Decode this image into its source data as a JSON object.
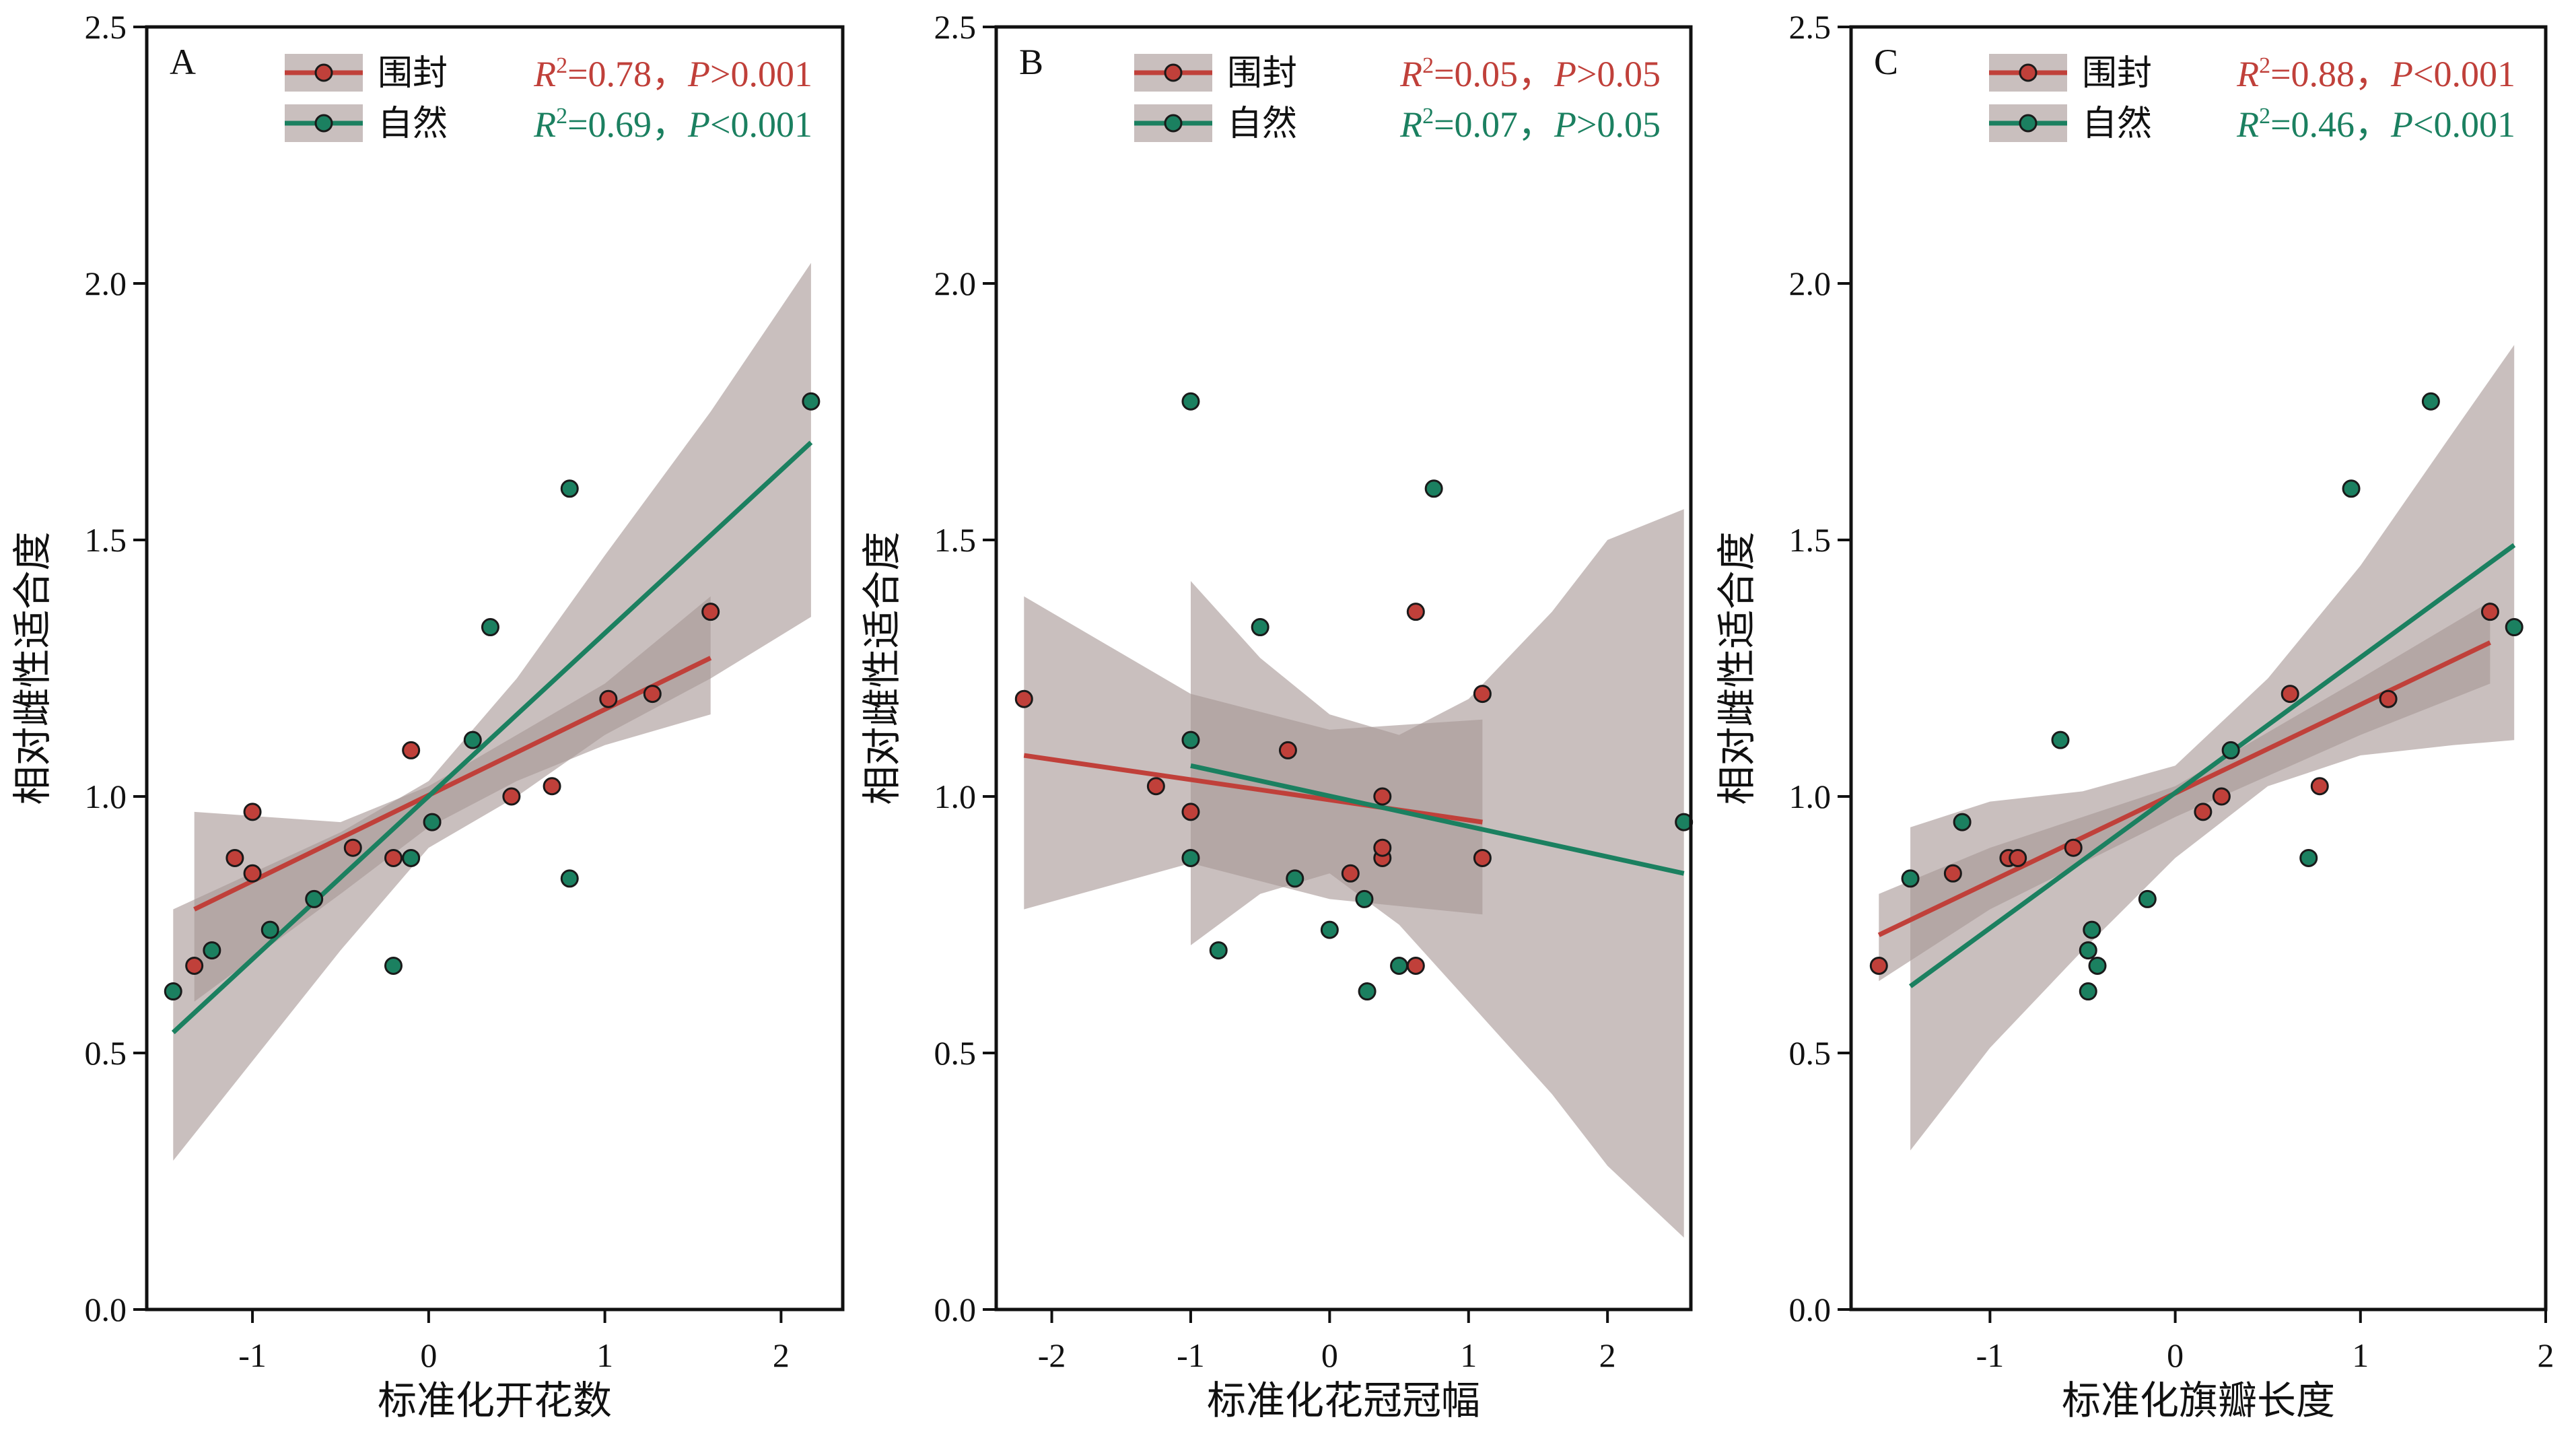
{
  "colors": {
    "fenced": "#c0403a",
    "natural": "#1b8060",
    "ci_band": "#a89896",
    "point_fenced": "#c0403a",
    "point_natural": "#1b8060"
  },
  "legend": {
    "fenced": "围封",
    "natural": "自然"
  },
  "chart_data": [
    {
      "type": "scatter",
      "panel": "A",
      "xlabel": "标准化开花数",
      "ylabel": "相对雌性适合度",
      "xlim": [
        -1.6,
        2.35
      ],
      "ylim": [
        0.0,
        2.5
      ],
      "xticks": [
        -1,
        0,
        1,
        2
      ],
      "yticks": [
        0.0,
        0.5,
        1.0,
        1.5,
        2.0,
        2.5
      ],
      "xtick_labels": [
        "-1",
        "0",
        "1",
        "2"
      ],
      "ytick_labels": [
        "0.0",
        "0.5",
        "1.0",
        "1.5",
        "2.0",
        "2.5"
      ],
      "stats": {
        "fenced": {
          "R2": "=0.78，",
          "P": ">0.001"
        },
        "natural": {
          "R2": "=0.69，",
          "P": "<0.001"
        }
      },
      "series": [
        {
          "name": "围封",
          "points": [
            [
              -1.33,
              0.67
            ],
            [
              -1.1,
              0.88
            ],
            [
              -1.0,
              0.85
            ],
            [
              -1.0,
              0.97
            ],
            [
              -0.43,
              0.9
            ],
            [
              -0.2,
              0.88
            ],
            [
              -0.1,
              1.09
            ],
            [
              0.47,
              1.0
            ],
            [
              0.7,
              1.02
            ],
            [
              1.02,
              1.19
            ],
            [
              1.27,
              1.2
            ],
            [
              1.6,
              1.36
            ]
          ],
          "fit": {
            "x": [
              -1.33,
              1.6
            ],
            "y": [
              0.78,
              1.27
            ]
          },
          "ci": {
            "x": [
              -1.33,
              -0.5,
              0.0,
              0.5,
              1.0,
              1.6
            ],
            "lower": [
              0.6,
              0.81,
              0.94,
              1.03,
              1.1,
              1.16
            ],
            "upper": [
              0.97,
              0.95,
              1.02,
              1.12,
              1.22,
              1.39
            ]
          }
        },
        {
          "name": "自然",
          "points": [
            [
              -1.45,
              0.62
            ],
            [
              -1.23,
              0.7
            ],
            [
              -0.9,
              0.74
            ],
            [
              -0.65,
              0.8
            ],
            [
              -0.2,
              0.67
            ],
            [
              -0.1,
              0.88
            ],
            [
              0.02,
              0.95
            ],
            [
              0.25,
              1.11
            ],
            [
              0.35,
              1.33
            ],
            [
              0.8,
              1.6
            ],
            [
              0.8,
              0.84
            ],
            [
              2.17,
              1.77
            ]
          ],
          "fit": {
            "x": [
              -1.45,
              2.17
            ],
            "y": [
              0.54,
              1.69
            ]
          },
          "ci": {
            "x": [
              -1.45,
              -0.5,
              0.0,
              0.5,
              1.0,
              1.6,
              2.17
            ],
            "lower": [
              0.29,
              0.7,
              0.9,
              1.0,
              1.12,
              1.23,
              1.35
            ],
            "upper": [
              0.78,
              0.93,
              1.03,
              1.23,
              1.47,
              1.75,
              2.04
            ]
          }
        }
      ]
    },
    {
      "type": "scatter",
      "panel": "B",
      "xlabel": "标准化花冠冠幅",
      "ylabel": "相对雌性适合度",
      "xlim": [
        -2.4,
        2.6
      ],
      "ylim": [
        0.0,
        2.5
      ],
      "xticks": [
        -2,
        -1,
        0,
        1,
        2
      ],
      "yticks": [
        0.0,
        0.5,
        1.0,
        1.5,
        2.0,
        2.5
      ],
      "xtick_labels": [
        "-2",
        "-1",
        "0",
        "1",
        "2"
      ],
      "ytick_labels": [
        "0.0",
        "0.5",
        "1.0",
        "1.5",
        "2.0",
        "2.5"
      ],
      "stats": {
        "fenced": {
          "R2": "=0.05，",
          "P": ">0.05"
        },
        "natural": {
          "R2": "=0.07，",
          "P": ">0.05"
        }
      },
      "series": [
        {
          "name": "围封",
          "points": [
            [
              -2.2,
              1.19
            ],
            [
              -1.25,
              1.02
            ],
            [
              -1.0,
              0.97
            ],
            [
              -0.3,
              1.09
            ],
            [
              0.15,
              0.85
            ],
            [
              0.38,
              1.0
            ],
            [
              0.38,
              0.88
            ],
            [
              0.38,
              0.9
            ],
            [
              0.62,
              1.36
            ],
            [
              0.62,
              0.67
            ],
            [
              1.1,
              1.2
            ],
            [
              1.1,
              0.88
            ]
          ],
          "fit": {
            "x": [
              -2.2,
              1.1
            ],
            "y": [
              1.08,
              0.95
            ]
          },
          "ci": {
            "x": [
              -2.2,
              -1.0,
              0.0,
              1.1
            ],
            "lower": [
              0.78,
              0.87,
              0.8,
              0.77
            ],
            "upper": [
              1.39,
              1.2,
              1.13,
              1.15
            ]
          }
        },
        {
          "name": "自然",
          "points": [
            [
              -1.0,
              1.77
            ],
            [
              -1.0,
              1.11
            ],
            [
              -1.0,
              0.88
            ],
            [
              -0.8,
              0.7
            ],
            [
              -0.5,
              1.33
            ],
            [
              -0.25,
              0.84
            ],
            [
              0.0,
              0.74
            ],
            [
              0.25,
              0.8
            ],
            [
              0.27,
              0.62
            ],
            [
              0.5,
              0.67
            ],
            [
              0.75,
              1.6
            ],
            [
              2.55,
              0.95
            ]
          ],
          "fit": {
            "x": [
              -1.0,
              2.55
            ],
            "y": [
              1.06,
              0.85
            ]
          },
          "ci": {
            "x": [
              -1.0,
              -0.5,
              0.0,
              0.5,
              1.0,
              1.6,
              2.0,
              2.55
            ],
            "lower": [
              0.71,
              0.81,
              0.85,
              0.75,
              0.6,
              0.42,
              0.28,
              0.14
            ],
            "upper": [
              1.42,
              1.27,
              1.16,
              1.12,
              1.19,
              1.36,
              1.5,
              1.56
            ]
          }
        }
      ]
    },
    {
      "type": "scatter",
      "panel": "C",
      "xlabel": "标准化旗瓣长度",
      "ylabel": "相对雌性适合度",
      "xlim": [
        -1.75,
        2.0
      ],
      "ylim": [
        0.0,
        2.5
      ],
      "xticks": [
        -1,
        0,
        1,
        2
      ],
      "yticks": [
        0.0,
        0.5,
        1.0,
        1.5,
        2.0,
        2.5
      ],
      "xtick_labels": [
        "-1",
        "0",
        "1",
        "2"
      ],
      "ytick_labels": [
        "0.0",
        "0.5",
        "1.0",
        "1.5",
        "2.0",
        "2.5"
      ],
      "stats": {
        "fenced": {
          "R2": "=0.88，",
          "P": "<0.001"
        },
        "natural": {
          "R2": "=0.46，",
          "P": "<0.001"
        }
      },
      "series": [
        {
          "name": "围封",
          "points": [
            [
              -1.6,
              0.67
            ],
            [
              -1.2,
              0.85
            ],
            [
              -0.9,
              0.88
            ],
            [
              -0.85,
              0.88
            ],
            [
              -0.55,
              0.9
            ],
            [
              0.15,
              0.97
            ],
            [
              0.25,
              1.0
            ],
            [
              0.62,
              1.2
            ],
            [
              0.78,
              1.02
            ],
            [
              1.15,
              1.19
            ],
            [
              1.7,
              1.36
            ]
          ],
          "fit": {
            "x": [
              -1.6,
              1.7
            ],
            "y": [
              0.73,
              1.3
            ]
          },
          "ci": {
            "x": [
              -1.6,
              -1.0,
              0.0,
              1.0,
              1.7
            ],
            "lower": [
              0.64,
              0.78,
              0.96,
              1.12,
              1.22
            ],
            "upper": [
              0.81,
              0.9,
              1.02,
              1.23,
              1.38
            ]
          }
        },
        {
          "name": "自然",
          "points": [
            [
              -1.43,
              0.84
            ],
            [
              -1.15,
              0.95
            ],
            [
              -0.62,
              1.11
            ],
            [
              -0.47,
              0.7
            ],
            [
              -0.45,
              0.74
            ],
            [
              -0.47,
              0.62
            ],
            [
              -0.42,
              0.67
            ],
            [
              -0.15,
              0.8
            ],
            [
              0.3,
              1.09
            ],
            [
              0.72,
              0.88
            ],
            [
              0.95,
              1.6
            ],
            [
              1.38,
              1.77
            ],
            [
              1.83,
              1.33
            ]
          ],
          "fit": {
            "x": [
              -1.43,
              1.83
            ],
            "y": [
              0.63,
              1.49
            ]
          },
          "ci": {
            "x": [
              -1.43,
              -1.0,
              -0.5,
              0.0,
              0.5,
              1.0,
              1.5,
              1.83
            ],
            "lower": [
              0.31,
              0.51,
              0.7,
              0.88,
              1.02,
              1.08,
              1.1,
              1.11
            ],
            "upper": [
              0.94,
              0.99,
              1.01,
              1.06,
              1.23,
              1.45,
              1.71,
              1.88
            ]
          }
        }
      ]
    }
  ]
}
